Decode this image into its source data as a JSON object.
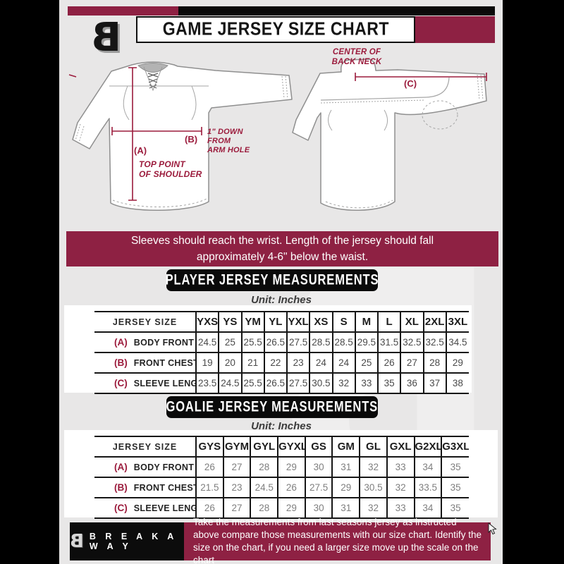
{
  "header": {
    "title": "GAME JERSEY SIZE CHART",
    "logo_glyph": "B"
  },
  "diagram": {
    "front": {
      "a_key": "(A)",
      "a_text": [
        "TOP POINT",
        "OF SHOULDER"
      ],
      "b_key": "(B)",
      "b_text": [
        "1\" DOWN",
        "FROM",
        "ARM HOLE"
      ]
    },
    "back": {
      "c_key": "(C)",
      "c_text": [
        "CENTER OF",
        "BACK NECK"
      ]
    }
  },
  "notice": "Sleeves should reach the wrist. Length of the jersey should fall approximately 4-6\" below the waist.",
  "player_table": {
    "heading": "PLAYER JERSEY MEASUREMENTS",
    "unit": "Unit: Inches",
    "size_label": "JERSEY SIZE",
    "sizes": [
      "YXS",
      "YS",
      "YM",
      "YL",
      "YXL",
      "XS",
      "S",
      "M",
      "L",
      "XL",
      "2XL",
      "3XL"
    ],
    "rows": [
      {
        "key": "(A)",
        "label": "BODY FRONT",
        "values": [
          "24.5",
          "25",
          "25.5",
          "26.5",
          "27.5",
          "28.5",
          "28.5",
          "29.5",
          "31.5",
          "32.5",
          "32.5",
          "34.5"
        ]
      },
      {
        "key": "(B)",
        "label": "FRONT CHEST",
        "values": [
          "19",
          "20",
          "21",
          "22",
          "23",
          "24",
          "24",
          "25",
          "26",
          "27",
          "28",
          "29"
        ]
      },
      {
        "key": "(C)",
        "label": "SLEEVE LENGTH",
        "values": [
          "23.5",
          "24.5",
          "25.5",
          "26.5",
          "27.5",
          "30.5",
          "32",
          "33",
          "35",
          "36",
          "37",
          "38"
        ]
      }
    ]
  },
  "goalie_table": {
    "heading": "GOALIE JERSEY MEASUREMENTS",
    "unit": "Unit: Inches",
    "size_label": "JERSEY SIZE",
    "sizes": [
      "GYS",
      "GYM",
      "GYL",
      "GYXL",
      "GS",
      "GM",
      "GL",
      "GXL",
      "G2XL",
      "G3XL"
    ],
    "rows": [
      {
        "key": "(A)",
        "label": "BODY FRONT",
        "values": [
          "26",
          "27",
          "28",
          "29",
          "30",
          "31",
          "32",
          "33",
          "34",
          "35"
        ]
      },
      {
        "key": "(B)",
        "label": "FRONT CHEST",
        "values": [
          "21.5",
          "23",
          "24.5",
          "26",
          "27.5",
          "29",
          "30.5",
          "32",
          "33.5",
          "35"
        ]
      },
      {
        "key": "(C)",
        "label": "SLEEVE LENGTH",
        "values": [
          "26",
          "27",
          "28",
          "29",
          "30",
          "31",
          "32",
          "33",
          "34",
          "35"
        ]
      }
    ]
  },
  "footer": {
    "brand": "B R E A K A W A Y",
    "logo_glyph": "B",
    "text": "Take the measurements from last seasons jersey as instructed above compare those measurements  with our size chart. Identify the size on the chart, if you need a larger size move up the scale on the chart"
  },
  "watermark": {
    "glyph": "B"
  },
  "colors": {
    "maroon": "#8e2143",
    "black": "#0a0a0a",
    "background": "#e8e7e7",
    "annotation": "#9b1b3c"
  }
}
